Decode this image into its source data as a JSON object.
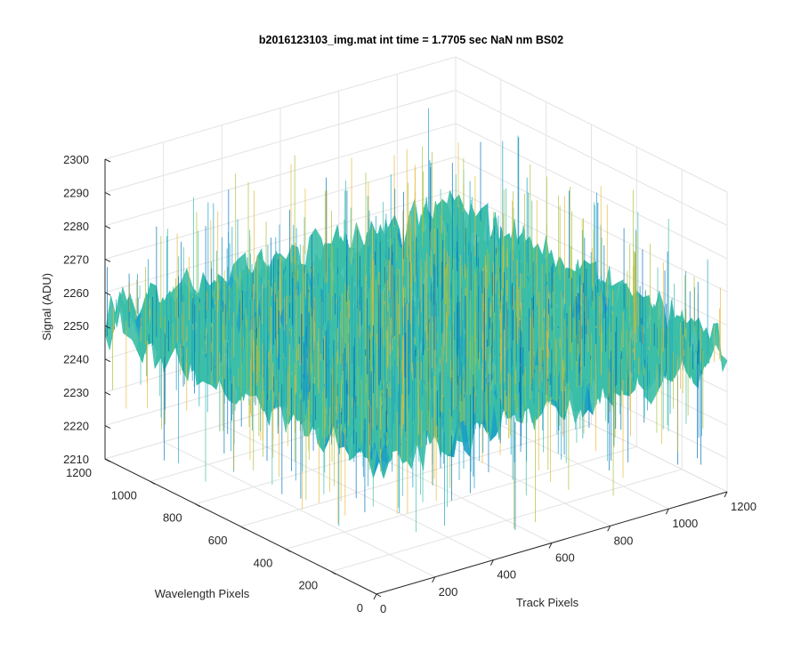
{
  "chart_data": {
    "type": "surface",
    "title": "b2016123103_img.mat int time = 1.7705 sec  NaN nm BS02",
    "xlabel": "Track Pixels",
    "ylabel": "Wavelength Pixels",
    "zlabel": "Signal (ADU)",
    "xlim": [
      0,
      1200
    ],
    "ylim": [
      0,
      1200
    ],
    "zlim": [
      2210,
      2300
    ],
    "x_ticks": [
      0,
      200,
      400,
      600,
      800,
      1000,
      1200
    ],
    "y_ticks": [
      0,
      200,
      400,
      600,
      800,
      1000,
      1200
    ],
    "z_ticks": [
      2210,
      2220,
      2230,
      2240,
      2250,
      2260,
      2270,
      2280,
      2290,
      2300
    ],
    "grid": true,
    "colormap": [
      "#0072bd",
      "#1aa0c8",
      "#3cbfa8",
      "#a8c23a",
      "#e6b93a"
    ],
    "surface_extent": {
      "x": [
        0,
        1200
      ],
      "y": [
        0,
        1200
      ]
    },
    "surface_mean": 2252,
    "surface_range": [
      2218,
      2292
    ]
  }
}
